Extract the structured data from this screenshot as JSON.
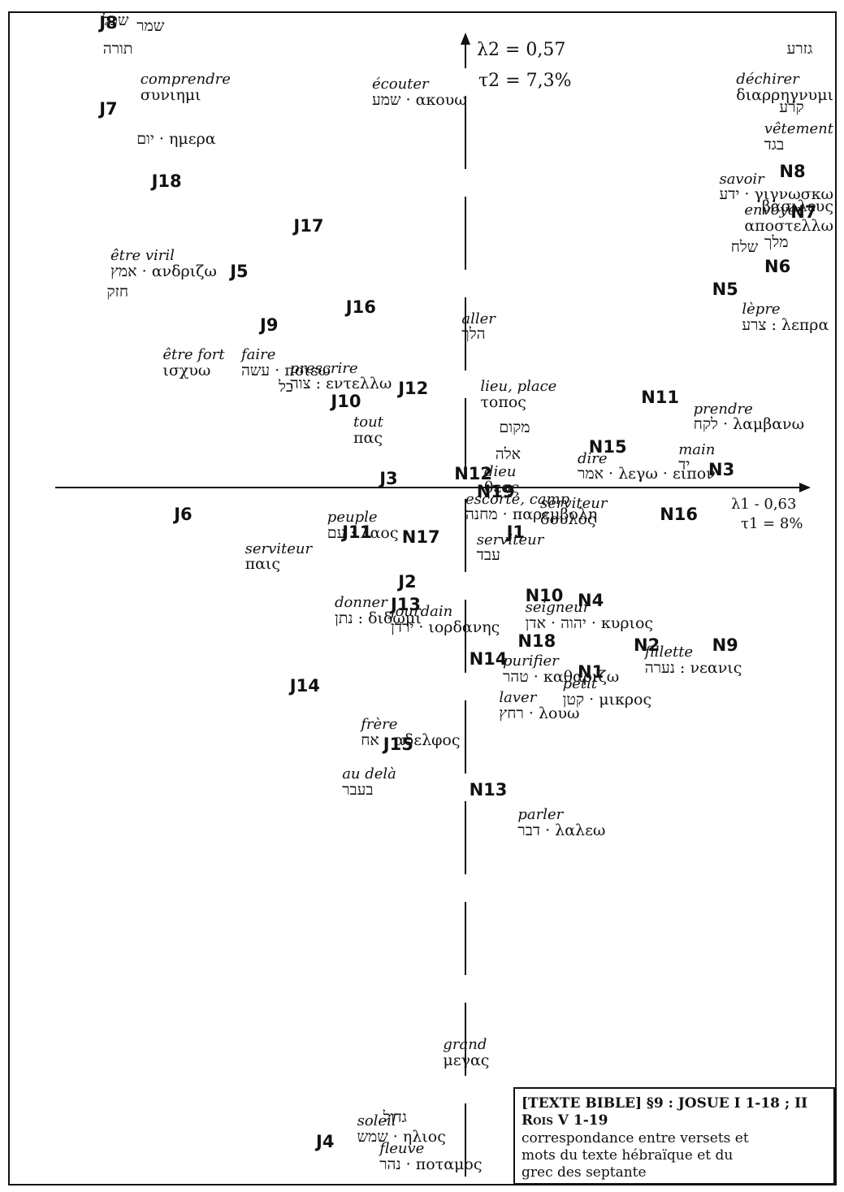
{
  "chart_data": {
    "type": "scatter",
    "title": "",
    "axes": {
      "axis1": {
        "lambda": "λ1 - 0,63",
        "tau": "τ1 = 8%"
      },
      "axis2": {
        "lambda": "λ2 = 0,57",
        "tau": "τ2 = 7,3%"
      }
    },
    "xlim": [
      -1.0,
      1.0
    ],
    "ylim": [
      -1.6,
      1.1
    ],
    "verses": [
      {
        "label": "J8",
        "x": -0.98,
        "y": 1.05
      },
      {
        "label": "J7",
        "x": -0.98,
        "y": 0.86
      },
      {
        "label": "J18",
        "x": -0.84,
        "y": 0.7
      },
      {
        "label": "J17",
        "x": -0.46,
        "y": 0.6
      },
      {
        "label": "J5",
        "x": -0.63,
        "y": 0.5
      },
      {
        "label": "J16",
        "x": -0.32,
        "y": 0.42
      },
      {
        "label": "J9",
        "x": -0.55,
        "y": 0.38
      },
      {
        "label": "J10",
        "x": -0.36,
        "y": 0.21
      },
      {
        "label": "J12",
        "x": -0.18,
        "y": 0.24
      },
      {
        "label": "J3",
        "x": -0.23,
        "y": 0.04
      },
      {
        "label": "J6",
        "x": -0.78,
        "y": -0.04
      },
      {
        "label": "J11",
        "x": -0.33,
        "y": -0.08
      },
      {
        "label": "N17",
        "x": -0.17,
        "y": -0.09
      },
      {
        "label": "J1",
        "x": 0.11,
        "y": -0.08
      },
      {
        "label": "J2",
        "x": -0.18,
        "y": -0.19
      },
      {
        "label": "J13",
        "x": -0.2,
        "y": -0.24
      },
      {
        "label": "J14",
        "x": -0.47,
        "y": -0.42
      },
      {
        "label": "J15",
        "x": -0.22,
        "y": -0.55
      },
      {
        "label": "J4",
        "x": -0.4,
        "y": -1.43
      },
      {
        "label": "N8",
        "x": 0.84,
        "y": 0.72
      },
      {
        "label": "N7",
        "x": 0.87,
        "y": 0.63
      },
      {
        "label": "N6",
        "x": 0.8,
        "y": 0.51
      },
      {
        "label": "N5",
        "x": 0.66,
        "y": 0.46
      },
      {
        "label": "N11",
        "x": 0.47,
        "y": 0.22
      },
      {
        "label": "N15",
        "x": 0.33,
        "y": 0.11
      },
      {
        "label": "N3",
        "x": 0.65,
        "y": 0.06
      },
      {
        "label": "N12",
        "x": -0.03,
        "y": 0.05
      },
      {
        "label": "N19",
        "x": 0.03,
        "y": 0.01
      },
      {
        "label": "N16",
        "x": 0.52,
        "y": -0.04
      },
      {
        "label": "N10",
        "x": 0.16,
        "y": -0.22
      },
      {
        "label": "N4",
        "x": 0.3,
        "y": -0.23
      },
      {
        "label": "N18",
        "x": 0.14,
        "y": -0.32
      },
      {
        "label": "N2",
        "x": 0.45,
        "y": -0.33
      },
      {
        "label": "N9",
        "x": 0.66,
        "y": -0.33
      },
      {
        "label": "N14",
        "x": 0.01,
        "y": -0.36
      },
      {
        "label": "N1",
        "x": 0.3,
        "y": -0.39
      },
      {
        "label": "N13",
        "x": 0.01,
        "y": -0.65
      }
    ],
    "words": [
      {
        "fr": "",
        "hg": "שכל",
        "x": -0.97,
        "y": 1.08
      },
      {
        "fr": "",
        "hg": "שמר",
        "x": -0.88,
        "y": 1.04
      },
      {
        "fr": "",
        "hg": "תורה",
        "x": -0.97,
        "y": 0.99
      },
      {
        "fr": "comprendre",
        "hg": "συνιημι",
        "x": -0.87,
        "y": 0.92
      },
      {
        "fr": "écouter",
        "hg": "שמע · ακουω",
        "x": -0.25,
        "y": 0.91
      },
      {
        "fr": "",
        "hg": "יום · ημερα",
        "x": -0.88,
        "y": 0.79
      },
      {
        "fr": "être viril",
        "hg": "אמץ · ανδριζω",
        "x": -0.95,
        "y": 0.53
      },
      {
        "fr": "",
        "hg": "חזק",
        "x": -0.96,
        "y": 0.45
      },
      {
        "fr": "être fort",
        "hg": "ισχυω",
        "x": -0.81,
        "y": 0.31
      },
      {
        "fr": "faire",
        "hg": "עשה · ποιεω",
        "x": -0.6,
        "y": 0.31
      },
      {
        "fr": "prescrire",
        "hg": "צוה : εντελλω",
        "x": -0.47,
        "y": 0.28
      },
      {
        "fr": "",
        "hg": "כל",
        "x": -0.5,
        "y": 0.24
      },
      {
        "fr": "tout",
        "hg": "πας",
        "x": -0.3,
        "y": 0.16
      },
      {
        "fr": "aller",
        "hg": "הלך",
        "x": -0.01,
        "y": 0.39
      },
      {
        "fr": "lieu, place",
        "hg": "τοπος",
        "x": 0.04,
        "y": 0.24
      },
      {
        "fr": "",
        "hg": "מקום",
        "x": 0.09,
        "y": 0.15
      },
      {
        "fr": "",
        "hg": "אלה",
        "x": 0.08,
        "y": 0.09
      },
      {
        "fr": "dieu",
        "hg": "θεος",
        "x": 0.05,
        "y": 0.05
      },
      {
        "fr": "escorte, camp",
        "hg": "מחנה · παρεμβολη",
        "x": 0.0,
        "y": -0.01
      },
      {
        "fr": "peuple",
        "hg": "עם · λαος",
        "x": -0.37,
        "y": -0.05
      },
      {
        "fr": "serviteur",
        "hg": "δουλος",
        "x": 0.2,
        "y": -0.02
      },
      {
        "fr": "serviteur",
        "hg": "עבד",
        "x": 0.03,
        "y": -0.1
      },
      {
        "fr": "serviteur",
        "hg": "παις",
        "x": -0.59,
        "y": -0.12
      },
      {
        "fr": "dire",
        "hg": "אמר · λεγω · ειπον",
        "x": 0.3,
        "y": 0.08
      },
      {
        "fr": "main",
        "hg": "יד",
        "x": 0.57,
        "y": 0.1
      },
      {
        "fr": "prendre",
        "hg": "לקח · λαμβανω",
        "x": 0.61,
        "y": 0.19
      },
      {
        "fr": "donner",
        "hg": "נתן : διδωμι",
        "x": -0.35,
        "y": -0.24
      },
      {
        "fr": "jourdain",
        "hg": "ירדן · ιορδανης",
        "x": -0.2,
        "y": -0.26
      },
      {
        "fr": "seigneur",
        "hg": "יהוה · אדן · κυριος",
        "x": 0.16,
        "y": -0.25
      },
      {
        "fr": "fillette",
        "hg": "נערה : νεανις",
        "x": 0.48,
        "y": -0.35
      },
      {
        "fr": "purifier",
        "hg": "טהר · καθαριζω",
        "x": 0.1,
        "y": -0.37
      },
      {
        "fr": "petit",
        "hg": "קטן · μικρος",
        "x": 0.26,
        "y": -0.42
      },
      {
        "fr": "laver",
        "hg": "רחץ · λουω",
        "x": 0.09,
        "y": -0.45
      },
      {
        "fr": "frère",
        "hg": "אח · αδελφος",
        "x": -0.28,
        "y": -0.51
      },
      {
        "fr": "au delà",
        "hg": "בעבר",
        "x": -0.33,
        "y": -0.62
      },
      {
        "fr": "parler",
        "hg": "דבר · λαλεω",
        "x": 0.14,
        "y": -0.71
      },
      {
        "fr": "grand",
        "hg": "μεγας",
        "x": -0.06,
        "y": -1.22
      },
      {
        "fr": "",
        "hg": "גדול",
        "x": -0.22,
        "y": -1.38
      },
      {
        "fr": "soleil",
        "hg": "שמש · ηλιος",
        "x": -0.29,
        "y": -1.39
      },
      {
        "fr": "fleuve",
        "hg": "נהר · ποταμος",
        "x": -0.23,
        "y": -1.45
      },
      {
        "fr": "",
        "hg": "גזרע",
        "x": 0.86,
        "y": 0.99
      },
      {
        "fr": "déchirer",
        "hg": "διαρρηγνυμι",
        "x": 0.87,
        "y": 0.92
      },
      {
        "fr": "",
        "hg": "קרע",
        "x": 0.84,
        "y": 0.86
      },
      {
        "fr": "vêtement",
        "hg": "בגד",
        "x": 0.83,
        "y": 0.81
      },
      {
        "fr": "savoir",
        "hg": "ידע · γιγνωσκω",
        "x": 0.69,
        "y": 0.7
      },
      {
        "fr": "envoyer",
        "hg": "αποστελλω",
        "x": 0.79,
        "y": 0.63
      },
      {
        "fr": "",
        "hg": "βασιλευς",
        "x": 0.93,
        "y": 0.64
      },
      {
        "fr": "",
        "hg": "מלך",
        "x": 0.8,
        "y": 0.56
      },
      {
        "fr": "",
        "hg": "שלח",
        "x": 0.71,
        "y": 0.55
      },
      {
        "fr": "lèpre",
        "hg": "צרע : λεπρα",
        "x": 0.74,
        "y": 0.41
      }
    ]
  },
  "caption": {
    "line1": "[TEXTE BIBLE] §9 : JOSUE I 1-18 ; II Rois V 1-19",
    "line2": "correspondance entre versets et",
    "line3": "mots du texte hébraïque et du",
    "line4": "grec des septante"
  }
}
